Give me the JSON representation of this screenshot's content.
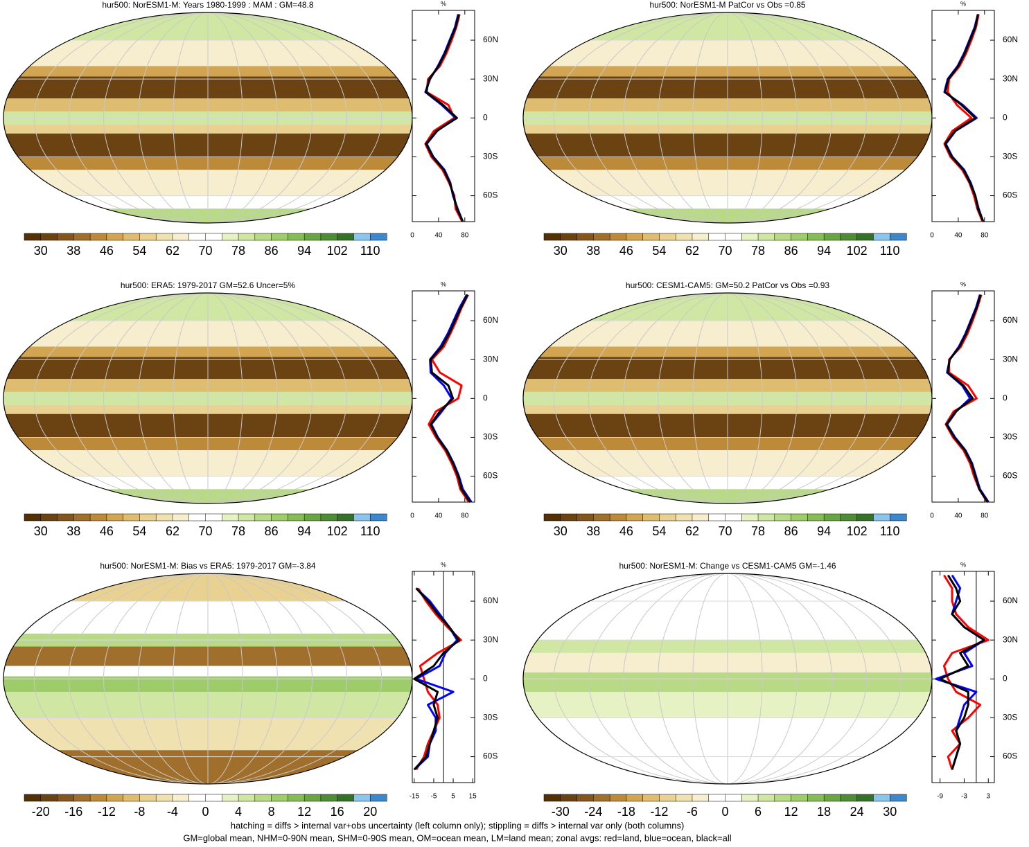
{
  "palette": [
    "#543005",
    "#6b4211",
    "#84561d",
    "#a06f2c",
    "#bd8a3a",
    "#d2a552",
    "#dfbd70",
    "#e9d191",
    "#f0e1b1",
    "#f6eecf",
    "#ffffff",
    "#ffffff",
    "#e6f2c4",
    "#cfe7a3",
    "#b8da86",
    "#9fcc6b",
    "#85bc56",
    "#6aa544",
    "#4f8c36",
    "#357228",
    "#8cc5ec",
    "#3b88cc"
  ],
  "panels": [
    {
      "title": "hur500: NorESM1-M: Years 1980-1999 : MAM : GM=48.8",
      "colorbar_labels": [
        30,
        38,
        46,
        54,
        62,
        70,
        78,
        86,
        94,
        102,
        110
      ],
      "profile": {
        "xlabel": "%",
        "xlim": [
          0,
          95
        ],
        "xticks": [
          0,
          40,
          80
        ],
        "ylim": [
          -80,
          83
        ],
        "yticks": [
          {
            "value": 60,
            "label": "60N"
          },
          {
            "value": 30,
            "label": "30N"
          },
          0,
          {
            "value": -30,
            "label": "30S"
          },
          {
            "value": -60,
            "label": "60S"
          }
        ],
        "lat": [
          -80,
          -70,
          -60,
          -50,
          -40,
          -30,
          -20,
          -10,
          0,
          10,
          20,
          30,
          40,
          50,
          60,
          70,
          80
        ],
        "series": [
          {
            "color": "#ff0000",
            "values": [
              76,
              66,
              64,
              56,
              46,
              29,
              20,
              33,
              64,
              55,
              22,
              24,
              42,
              52,
              60,
              67,
              72
            ]
          },
          {
            "color": "#0000ff",
            "values": [
              77,
              69,
              62,
              58,
              49,
              32,
              22,
              38,
              66,
              45,
              20,
              27,
              39,
              49,
              57,
              65,
              70
            ]
          },
          {
            "color": "#000000",
            "values": [
              77,
              68,
              63,
              57,
              48,
              31,
              21,
              37,
              68,
              47,
              21,
              26,
              40,
              50,
              58,
              66,
              71
            ]
          }
        ]
      }
    },
    {
      "title": "hur500: NorESM1-M PatCor vs Obs =0.85",
      "colorbar_labels": [
        30,
        38,
        46,
        54,
        62,
        70,
        78,
        86,
        94,
        102,
        110
      ],
      "profile": {
        "xlabel": "%",
        "xlim": [
          0,
          95
        ],
        "xticks": [
          0,
          40,
          80
        ],
        "ylim": [
          -80,
          83
        ],
        "yticks": [
          {
            "value": 60,
            "label": "60N"
          },
          {
            "value": 30,
            "label": "30N"
          },
          0,
          {
            "value": -30,
            "label": "30S"
          },
          {
            "value": -60,
            "label": "60S"
          }
        ],
        "lat": [
          -80,
          -70,
          -60,
          -50,
          -40,
          -30,
          -20,
          -10,
          0,
          10,
          20,
          30,
          40,
          50,
          60,
          70,
          80
        ],
        "series": [
          {
            "color": "#ff0000",
            "values": [
              77,
              69,
              64,
              57,
              46,
              28,
              19,
              31,
              60,
              38,
              24,
              26,
              42,
              52,
              60,
              67,
              71
            ]
          },
          {
            "color": "#0000ff",
            "values": [
              78,
              71,
              66,
              59,
              49,
              31,
              21,
              36,
              68,
              47,
              19,
              24,
              39,
              49,
              57,
              65,
              70
            ]
          },
          {
            "color": "#000000",
            "values": [
              78,
              70,
              66,
              58,
              48,
              30,
              20,
              35,
              66,
              45,
              20,
              25,
              40,
              50,
              58,
              66,
              70
            ]
          }
        ]
      }
    },
    {
      "title": "hur500: ERA5: 1979-2017 GM=52.6 Uncer=5%",
      "colorbar_labels": [
        30,
        38,
        46,
        54,
        62,
        70,
        78,
        86,
        94,
        102,
        110
      ],
      "profile": {
        "xlabel": "%",
        "xlim": [
          0,
          95
        ],
        "xticks": [
          0,
          40,
          80
        ],
        "ylim": [
          -80,
          83
        ],
        "yticks": [
          {
            "value": 60,
            "label": "60N"
          },
          {
            "value": 30,
            "label": "30N"
          },
          0,
          {
            "value": -30,
            "label": "30S"
          },
          {
            "value": -60,
            "label": "60S"
          }
        ],
        "lat": [
          -80,
          -70,
          -60,
          -50,
          -40,
          -30,
          -20,
          -10,
          0,
          10,
          20,
          30,
          40,
          50,
          60,
          70,
          80
        ],
        "series": [
          {
            "color": "#ff0000",
            "values": [
              86,
              73,
              68,
              60,
              50,
              36,
              25,
              36,
              70,
              75,
              42,
              30,
              48,
              58,
              67,
              75,
              85
            ]
          },
          {
            "color": "#0000ff",
            "values": [
              90,
              77,
              71,
              63,
              53,
              39,
              29,
              45,
              60,
              48,
              28,
              27,
              43,
              54,
              63,
              72,
              83
            ]
          },
          {
            "color": "#000000",
            "values": [
              88,
              75,
              70,
              62,
              52,
              38,
              28,
              42,
              62,
              55,
              30,
              28,
              45,
              56,
              65,
              74,
              84
            ]
          }
        ]
      }
    },
    {
      "title": "hur500: CESM1-CAM5: GM=50.2 PatCor vs Obs =0.93",
      "colorbar_labels": [
        30,
        38,
        46,
        54,
        62,
        70,
        78,
        86,
        94,
        102,
        110
      ],
      "profile": {
        "xlabel": "%",
        "xlim": [
          0,
          95
        ],
        "xticks": [
          0,
          40,
          80
        ],
        "ylim": [
          -80,
          83
        ],
        "yticks": [
          {
            "value": 60,
            "label": "60N"
          },
          {
            "value": 30,
            "label": "30N"
          },
          0,
          {
            "value": -30,
            "label": "30S"
          },
          {
            "value": -60,
            "label": "60S"
          }
        ],
        "lat": [
          -80,
          -70,
          -60,
          -50,
          -40,
          -30,
          -20,
          -10,
          0,
          10,
          20,
          30,
          40,
          50,
          60,
          70,
          80
        ],
        "series": [
          {
            "color": "#ff0000",
            "values": [
              84,
              72,
              64,
              58,
              48,
              32,
              21,
              33,
              68,
              55,
              26,
              26,
              44,
              54,
              62,
              69,
              75
            ]
          },
          {
            "color": "#0000ff",
            "values": [
              86,
              73,
              67,
              61,
              51,
              35,
              23,
              37,
              58,
              46,
              23,
              27,
              41,
              51,
              59,
              67,
              73
            ]
          },
          {
            "color": "#000000",
            "values": [
              85,
              72,
              66,
              60,
              50,
              34,
              22,
              36,
              62,
              48,
              24,
              27,
              42,
              52,
              60,
              68,
              74
            ]
          }
        ]
      }
    },
    {
      "title": "hur500: NorESM1-M: Bias vs ERA5: 1979-2017 GM=-3.84",
      "colorbar_labels": [
        -20,
        -16,
        -12,
        -8,
        -4,
        0,
        4,
        8,
        12,
        16,
        20
      ],
      "profile": {
        "xlabel": "%",
        "xlim": [
          -16,
          16
        ],
        "xticks": [
          -15,
          -5,
          5,
          15
        ],
        "ylim": [
          -80,
          83
        ],
        "yticks": [
          {
            "value": 60,
            "label": "60N"
          },
          {
            "value": 30,
            "label": "30N"
          },
          0,
          {
            "value": -30,
            "label": "30S"
          },
          {
            "value": -60,
            "label": "60S"
          }
        ],
        "lat": [
          -80,
          -70,
          -60,
          -50,
          -40,
          -30,
          -20,
          -10,
          0,
          10,
          20,
          30,
          40,
          50,
          60,
          70,
          80
        ],
        "series": [
          {
            "color": "#ff0000",
            "values": [
              null,
              -14,
              -10,
              -8,
              -5,
              -2,
              -3,
              -8,
              -10,
              -12,
              -3,
              9,
              2,
              -4,
              -9,
              -13,
              null
            ]
          },
          {
            "color": "#0000ff",
            "values": [
              null,
              -15,
              -8,
              -7,
              -4,
              -4,
              -8,
              5,
              -14,
              -2,
              1,
              7,
              3,
              -2,
              -7,
              -14,
              null
            ]
          },
          {
            "color": "#000000",
            "values": [
              null,
              -15,
              -9,
              -7,
              -5,
              -3,
              -5,
              -3,
              -15,
              -5,
              0,
              8,
              3,
              -3,
              -8,
              -14,
              null
            ]
          }
        ]
      }
    },
    {
      "title": "hur500: NorESM1-M: Change vs CESM1-CAM5 GM=-1.46",
      "colorbar_labels": [
        -30,
        -24,
        -18,
        -12,
        -6,
        0,
        6,
        12,
        18,
        24,
        30
      ],
      "profile": {
        "xlabel": "%",
        "xlim": [
          -11,
          4.5
        ],
        "xticks": [
          -9,
          -3,
          3
        ],
        "ylim": [
          -80,
          83
        ],
        "yticks": [
          {
            "value": 60,
            "label": "60N"
          },
          {
            "value": 30,
            "label": "30N"
          },
          0,
          {
            "value": -30,
            "label": "30S"
          },
          {
            "value": -60,
            "label": "60S"
          }
        ],
        "lat": [
          -80,
          -70,
          -60,
          -50,
          -40,
          -30,
          -20,
          -10,
          0,
          10,
          20,
          30,
          40,
          50,
          60,
          70,
          80
        ],
        "series": [
          {
            "color": "#ff0000",
            "values": [
              null,
              -6,
              -7,
              -4,
              -6,
              -2,
              1,
              -5,
              -7,
              -8,
              -6,
              3,
              -2,
              -5,
              -6,
              -6,
              -8
            ]
          },
          {
            "color": "#0000ff",
            "values": [
              null,
              -6,
              -5,
              -4,
              -5,
              -4,
              -3,
              0,
              -10,
              -1,
              -3,
              2,
              -3,
              -6,
              -5,
              -4,
              -6
            ]
          },
          {
            "color": "#000000",
            "values": [
              null,
              -6,
              -5,
              -4,
              -5,
              -3,
              -2,
              -2,
              -9,
              -2,
              -4,
              2,
              -3,
              -6,
              -4,
              -5,
              -7
            ]
          }
        ]
      }
    }
  ],
  "footer": [
    "hatching = diffs > internal var+obs uncertainty (left column only); stippling = diffs > internal var only (both columns)",
    "GM=global mean, NHM=0-90N mean, SHM=0-90S mean, OM=ocean mean, LM=land mean; zonal avgs: red=land, blue=ocean, black=all"
  ]
}
